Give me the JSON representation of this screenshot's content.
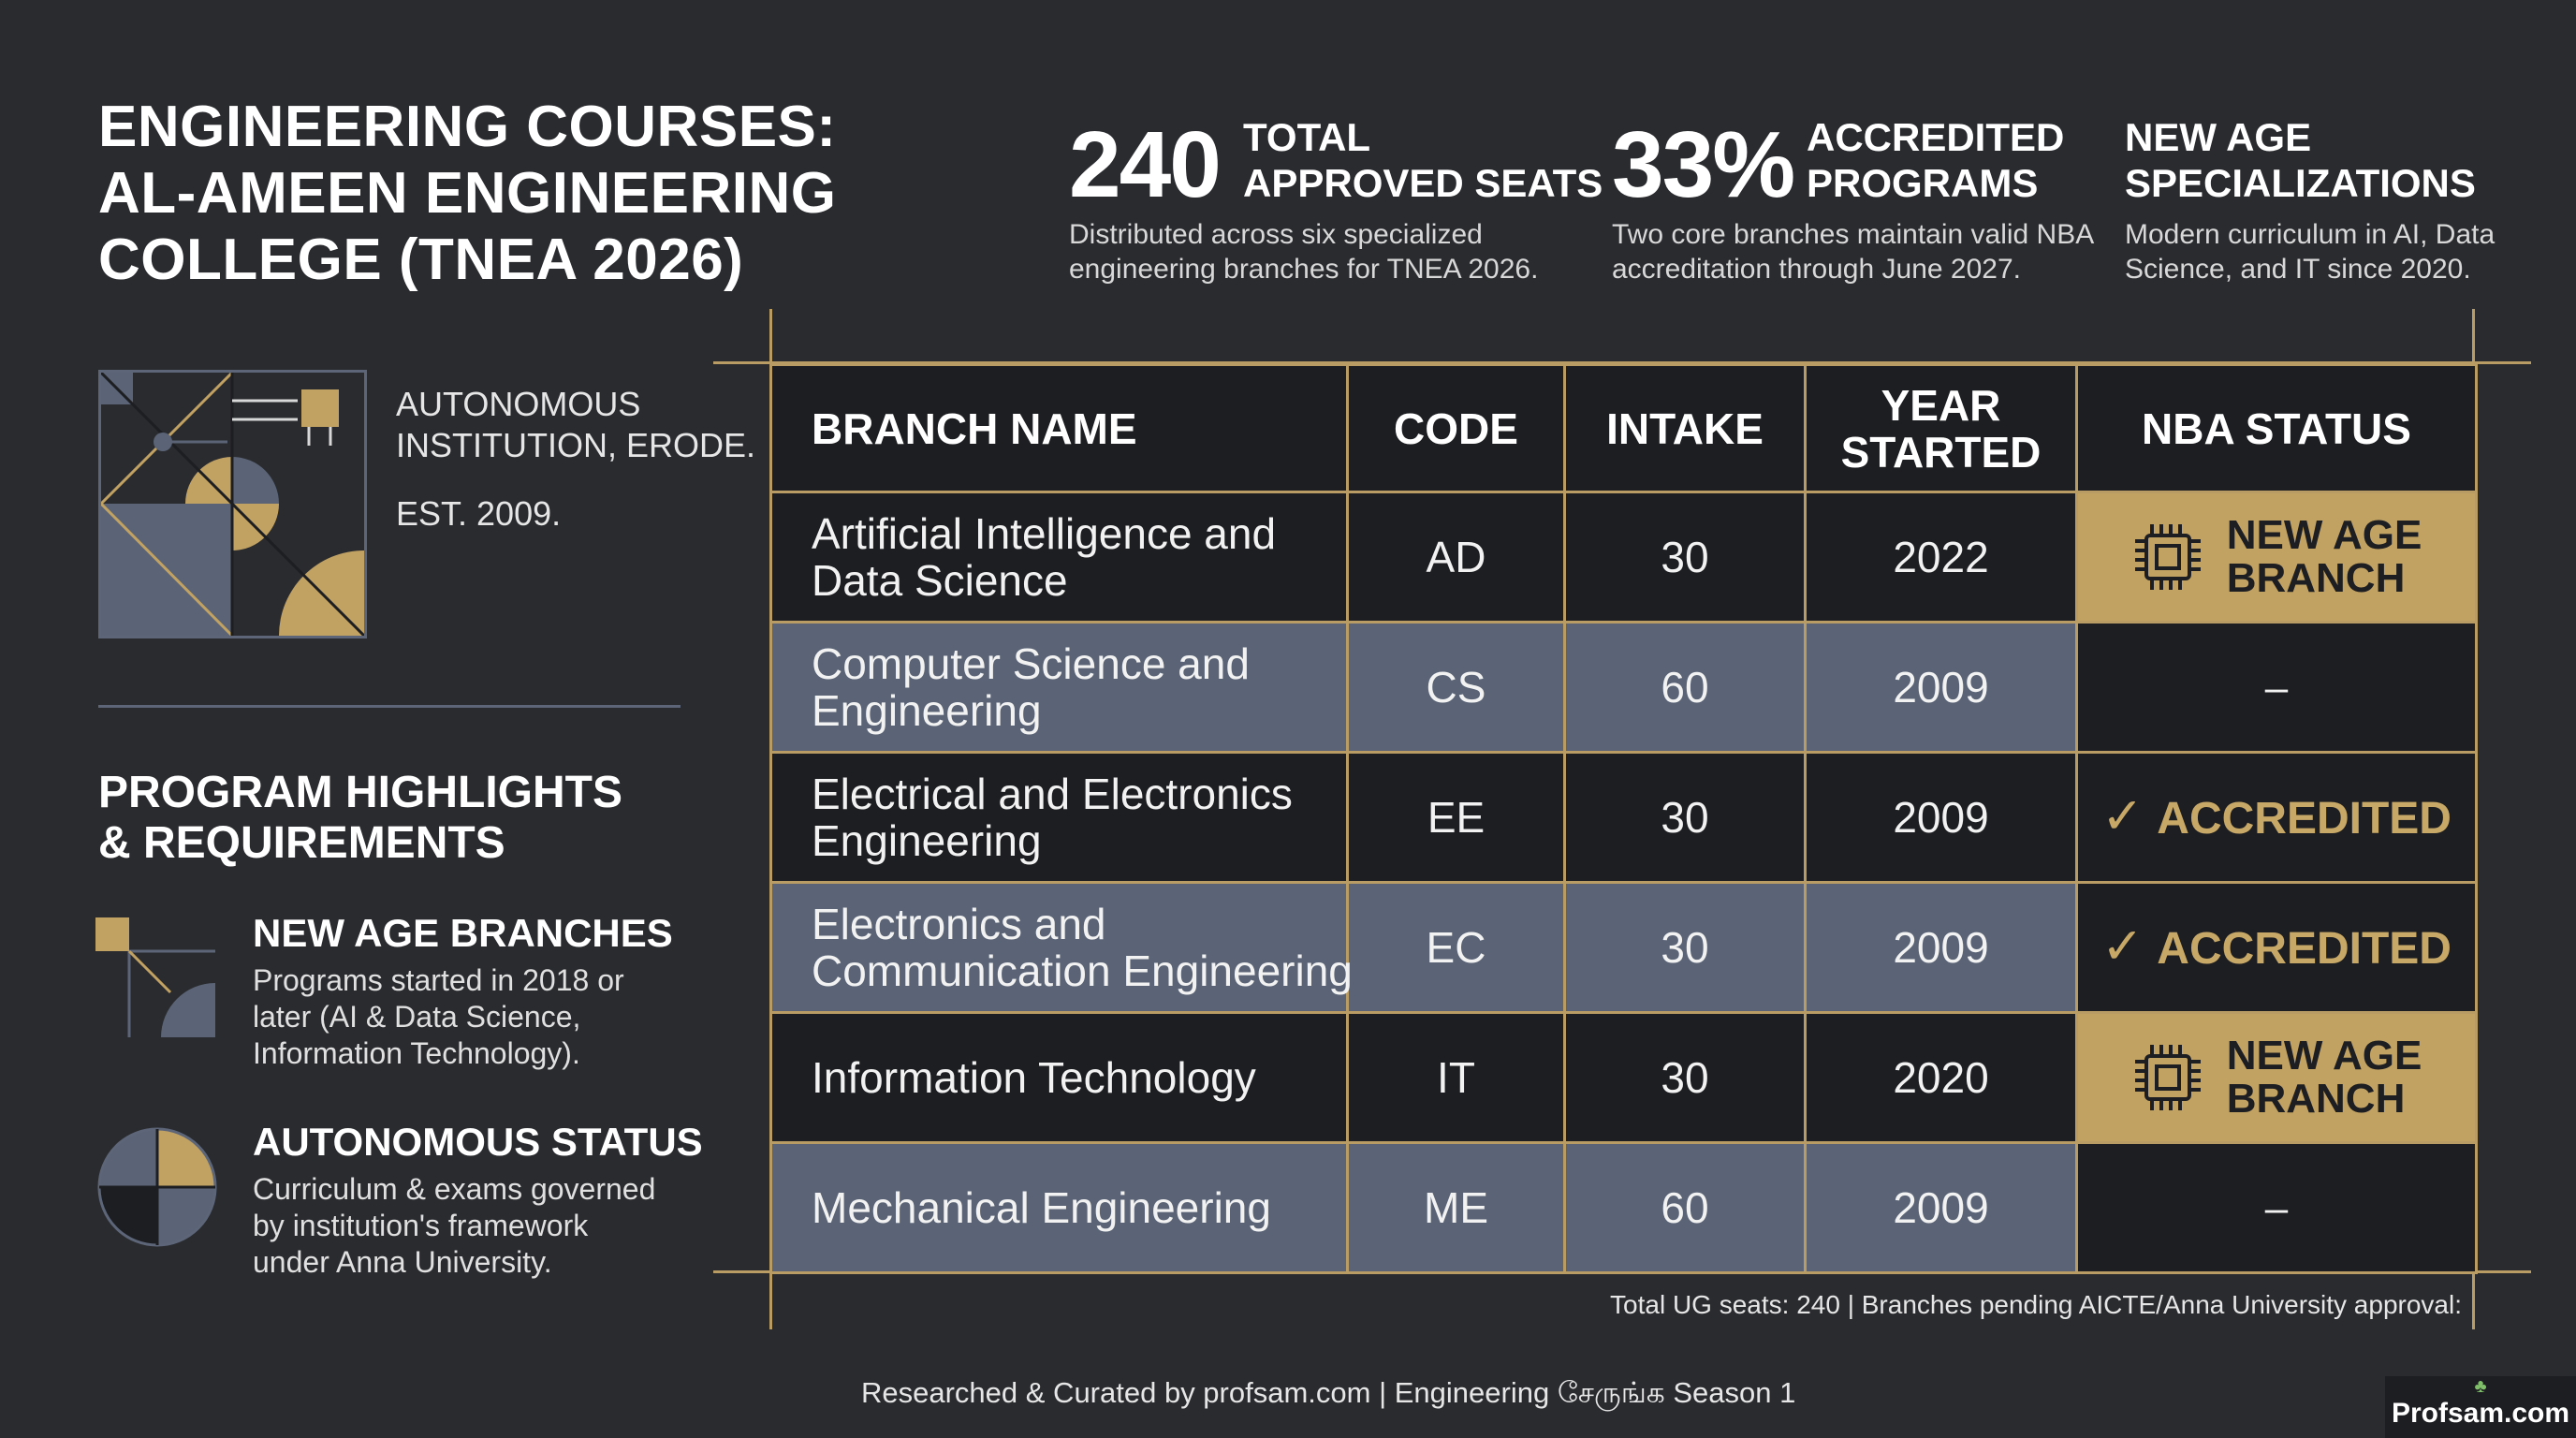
{
  "header": {
    "title_lines": [
      "ENGINEERING COURSES:",
      "AL-AMEEN ENGINEERING",
      "COLLEGE (TNEA 2026)"
    ]
  },
  "stats": [
    {
      "value": "240",
      "label_lines": [
        "TOTAL",
        "APPROVED SEATS"
      ],
      "desc_lines": [
        "Distributed across six specialized",
        "engineering branches for TNEA 2026."
      ]
    },
    {
      "value": "33%",
      "label_lines": [
        "ACCREDITED",
        "PROGRAMS"
      ],
      "desc_lines": [
        "Two core branches maintain valid NBA",
        "accreditation through June 2027."
      ]
    },
    {
      "value": "",
      "label_lines": [
        "NEW AGE",
        "SPECIALIZATIONS"
      ],
      "desc_lines": [
        "Modern curriculum in AI, Data",
        "Science, and IT since 2020."
      ]
    }
  ],
  "institution": {
    "lines": [
      "AUTONOMOUS",
      "INSTITUTION, ERODE."
    ],
    "established": "EST. 2009."
  },
  "highlights": {
    "title_lines": [
      "PROGRAM HIGHLIGHTS",
      "& REQUIREMENTS"
    ],
    "items": [
      {
        "icon": "new-age-branches-icon",
        "heading": "NEW AGE BRANCHES",
        "desc_lines": [
          "Programs started in 2018 or",
          "later (AI & Data Science,",
          "Information Technology)."
        ]
      },
      {
        "icon": "autonomous-status-icon",
        "heading": "AUTONOMOUS STATUS",
        "desc_lines": [
          "Curriculum & exams governed",
          "by institution's framework",
          "under Anna University."
        ]
      }
    ]
  },
  "table": {
    "columns": [
      "BRANCH NAME",
      "CODE",
      "INTAKE",
      "YEAR STARTED",
      "NBA STATUS"
    ],
    "year_header_lines": [
      "YEAR",
      "STARTED"
    ],
    "rows": [
      {
        "name_lines": [
          "Artificial Intelligence and",
          "Data Science"
        ],
        "code": "AD",
        "intake": "30",
        "year": "2022",
        "status_type": "new",
        "status_lines": [
          "NEW AGE",
          "BRANCH"
        ],
        "shade": "dark"
      },
      {
        "name_lines": [
          "Computer Science and",
          "Engineering"
        ],
        "code": "CS",
        "intake": "60",
        "year": "2009",
        "status_type": "dash",
        "status_text": "–",
        "shade": "slate"
      },
      {
        "name_lines": [
          "Electrical and Electronics",
          "Engineering"
        ],
        "code": "EE",
        "intake": "30",
        "year": "2009",
        "status_type": "accredited",
        "status_text": "ACCREDITED",
        "check": "✓",
        "shade": "dark"
      },
      {
        "name_lines": [
          "Electronics and",
          "Communication Engineering"
        ],
        "code": "EC",
        "intake": "30",
        "year": "2009",
        "status_type": "accredited",
        "status_text": "ACCREDITED",
        "check": "✓",
        "shade": "slate"
      },
      {
        "name_lines": [
          "Information Technology"
        ],
        "code": "IT",
        "intake": "30",
        "year": "2020",
        "status_type": "new",
        "status_lines": [
          "NEW AGE",
          "BRANCH"
        ],
        "shade": "dark"
      },
      {
        "name_lines": [
          "Mechanical Engineering"
        ],
        "code": "ME",
        "intake": "60",
        "year": "2009",
        "status_type": "dash",
        "status_text": "–",
        "shade": "slate"
      }
    ],
    "footnote": "Total UG seats: 240 | Branches pending AICTE/Anna University approval:"
  },
  "footer": {
    "credit": "Researched & Curated by profsam.com | Engineering சேருங்க Season 1",
    "brand": "Profsam.com",
    "brand_icon": "leaf-icon"
  },
  "colors": {
    "background": "#2a2b2f",
    "gold": "#c2a263",
    "slate": "#5a6476",
    "cell_dark": "#1d1e21"
  }
}
